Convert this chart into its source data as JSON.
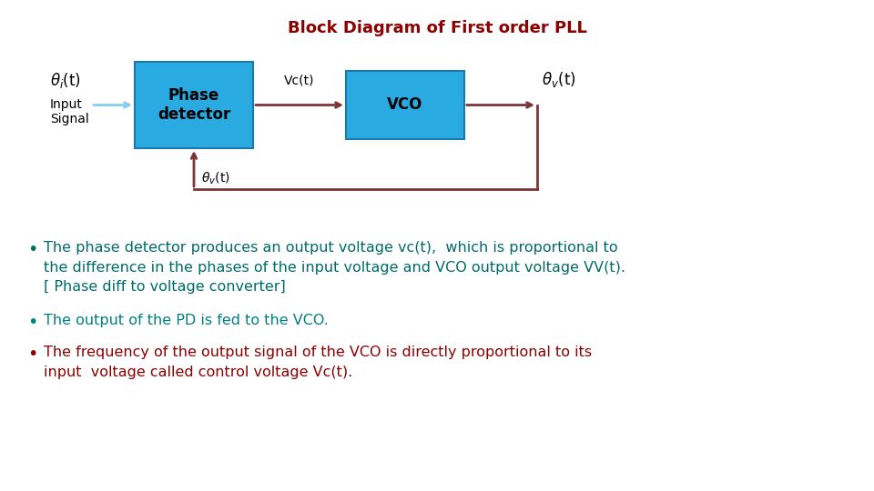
{
  "title": "Block Diagram of First order PLL",
  "title_color": "#8B0000",
  "title_fontsize": 13,
  "bg_color": "#FFFFFF",
  "box_color": "#29ABE2",
  "box_edge_color": "#1A7AAF",
  "arrow_color": "#7B3535",
  "input_arrow_color": "#87CEEB",
  "feedback_color": "#7B3535",
  "bullet_color_1": "#006B6B",
  "bullet_color_2": "#008080",
  "bullet_color_3": "#8B0000",
  "bullet1": "The phase detector produces an output voltage vc(t),  which is proportional to\nthe difference in the phases of the input voltage and VCO output voltage VV(t).\n[ Phase diff to voltage converter]",
  "bullet2": "The output of the PD is fed to the VCO.",
  "bullet3": "The frequency of the output signal of the VCO is directly proportional to its\ninput  voltage called control voltage Vc(t).",
  "text_fontsize": 11.5
}
